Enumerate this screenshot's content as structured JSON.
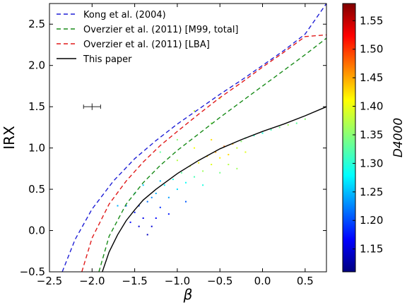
{
  "chart_data": {
    "type": "scatter",
    "title": "",
    "xlabel": "β",
    "ylabel": "IRX",
    "xlim": [
      -2.5,
      0.75
    ],
    "ylim": [
      -0.5,
      2.75
    ],
    "x_ticks": [
      -2.5,
      -2.0,
      -1.5,
      -1.0,
      -0.5,
      0.0,
      0.5
    ],
    "x_tick_labels": [
      "−2.5",
      "−2.0",
      "−1.5",
      "−1.0",
      "−0.5",
      "0.0",
      "0.5"
    ],
    "y_ticks": [
      -0.5,
      0.0,
      0.5,
      1.0,
      1.5,
      2.0,
      2.5
    ],
    "y_tick_labels": [
      "−0.5",
      "0.0",
      "0.5",
      "1.0",
      "1.5",
      "2.0",
      "2.5"
    ],
    "grid": false,
    "legend_position": "top-left",
    "series": [
      {
        "name": "Kong et al. (2004)",
        "style": "dashed",
        "color": "#1f1fd6",
        "x": [
          -2.35,
          -2.2,
          -2.0,
          -1.75,
          -1.5,
          -1.25,
          -1.0,
          -0.75,
          -0.5,
          -0.25,
          0.0,
          0.25,
          0.5,
          0.75
        ],
        "y": [
          -0.5,
          -0.11,
          0.26,
          0.6,
          0.87,
          1.09,
          1.29,
          1.47,
          1.65,
          1.82,
          2.0,
          2.18,
          2.38,
          2.75
        ]
      },
      {
        "name": "Overzier et al. (2011) [M99, total]",
        "style": "dashed",
        "color": "#1a8c1a",
        "x": [
          -1.92,
          -1.8,
          -1.6,
          -1.4,
          -1.2,
          -1.0,
          -0.75,
          -0.5,
          -0.25,
          0.0,
          0.25,
          0.5,
          0.75
        ],
        "y": [
          -0.5,
          -0.07,
          0.32,
          0.58,
          0.79,
          0.97,
          1.17,
          1.37,
          1.56,
          1.75,
          1.94,
          2.13,
          2.33
        ]
      },
      {
        "name": "Overzier et al. (2011) [LBA]",
        "style": "dashed",
        "color": "#e01a1a",
        "x": [
          -2.12,
          -2.0,
          -1.8,
          -1.6,
          -1.4,
          -1.2,
          -1.0,
          -0.75,
          -0.5,
          -0.25,
          0.0,
          0.25,
          0.5,
          0.75
        ],
        "y": [
          -0.5,
          -0.09,
          0.32,
          0.6,
          0.83,
          1.03,
          1.2,
          1.41,
          1.61,
          1.79,
          1.98,
          2.16,
          2.35,
          2.37
        ]
      },
      {
        "name": "This paper",
        "style": "solid",
        "color": "#000000",
        "x": [
          -1.88,
          -1.8,
          -1.7,
          -1.6,
          -1.5,
          -1.4,
          -1.25,
          -1.0,
          -0.75,
          -0.5,
          -0.25,
          0.0,
          0.25,
          0.5,
          0.75
        ],
        "y": [
          -0.5,
          -0.26,
          -0.05,
          0.12,
          0.25,
          0.37,
          0.5,
          0.69,
          0.85,
          0.99,
          1.1,
          1.2,
          1.29,
          1.39,
          1.5
        ]
      }
    ],
    "scatter_points": [
      [
        -1.55,
        0.1,
        1.17
      ],
      [
        -1.5,
        0.22,
        1.18
      ],
      [
        -1.45,
        0.3,
        1.2
      ],
      [
        -1.4,
        0.15,
        1.16
      ],
      [
        -1.35,
        0.35,
        1.22
      ],
      [
        -1.3,
        0.05,
        1.15
      ],
      [
        -1.25,
        0.45,
        1.25
      ],
      [
        -1.2,
        0.28,
        1.19
      ],
      [
        -1.15,
        0.55,
        1.28
      ],
      [
        -1.1,
        0.4,
        1.24
      ],
      [
        -1.05,
        0.62,
        1.3
      ],
      [
        -1.0,
        0.5,
        1.27
      ],
      [
        -0.95,
        0.7,
        1.33
      ],
      [
        -0.9,
        0.58,
        1.29
      ],
      [
        -0.85,
        0.78,
        1.38
      ],
      [
        -0.8,
        0.65,
        1.32
      ],
      [
        -0.75,
        0.82,
        1.4
      ],
      [
        -0.7,
        0.72,
        1.36
      ],
      [
        -0.65,
        0.9,
        1.43
      ],
      [
        -0.6,
        0.8,
        1.39
      ],
      [
        -0.55,
        0.95,
        1.45
      ],
      [
        -0.5,
        0.88,
        1.41
      ],
      [
        -0.45,
        1.02,
        1.47
      ],
      [
        -0.4,
        0.92,
        1.42
      ],
      [
        -0.35,
        1.05,
        1.44
      ],
      [
        -0.3,
        1.0,
        1.38
      ],
      [
        -0.25,
        1.08,
        1.35
      ],
      [
        -0.2,
        1.12,
        1.33
      ],
      [
        -0.1,
        1.15,
        1.31
      ],
      [
        0.0,
        1.18,
        1.3
      ],
      [
        0.1,
        1.22,
        1.32
      ],
      [
        0.2,
        1.25,
        1.34
      ],
      [
        0.3,
        1.28,
        1.36
      ],
      [
        0.4,
        1.3,
        1.33
      ],
      [
        0.5,
        1.35,
        1.35
      ],
      [
        -1.6,
        0.3,
        1.22
      ],
      [
        -1.2,
        0.6,
        1.26
      ],
      [
        -1.0,
        0.85,
        1.37
      ],
      [
        -0.8,
        1.0,
        1.4
      ],
      [
        -0.6,
        1.1,
        1.42
      ],
      [
        -0.9,
        0.35,
        1.21
      ],
      [
        -1.1,
        0.2,
        1.18
      ],
      [
        -1.3,
        0.4,
        1.23
      ],
      [
        -0.7,
        0.55,
        1.3
      ],
      [
        -0.5,
        0.7,
        1.34
      ],
      [
        -1.4,
        0.55,
        1.26
      ],
      [
        -1.5,
        0.45,
        1.24
      ],
      [
        -0.4,
        0.8,
        1.37
      ],
      [
        -1.7,
        0.3,
        1.25
      ],
      [
        -0.2,
        0.95,
        1.39
      ],
      [
        -0.6,
        1.3,
        1.36
      ],
      [
        -0.8,
        1.45,
        1.38
      ],
      [
        -0.5,
        1.6,
        1.4
      ],
      [
        -1.2,
        0.95,
        1.33
      ],
      [
        -1.0,
        1.1,
        1.35
      ],
      [
        -0.3,
        0.75,
        1.36
      ],
      [
        -1.45,
        0.05,
        1.15
      ],
      [
        -1.35,
        -0.05,
        1.14
      ],
      [
        -1.25,
        0.15,
        1.17
      ]
    ],
    "error_bar": {
      "x": -2.0,
      "y": 1.5,
      "xerr": 0.1,
      "yerr": 0.04
    },
    "colorbar": {
      "label": "D4000",
      "min": 1.11,
      "max": 1.58,
      "ticks": [
        1.15,
        1.2,
        1.25,
        1.3,
        1.35,
        1.4,
        1.45,
        1.5,
        1.55
      ],
      "tick_labels": [
        "1.15",
        "1.20",
        "1.25",
        "1.30",
        "1.35",
        "1.40",
        "1.45",
        "1.50",
        "1.55"
      ],
      "colormap": "jet"
    }
  }
}
